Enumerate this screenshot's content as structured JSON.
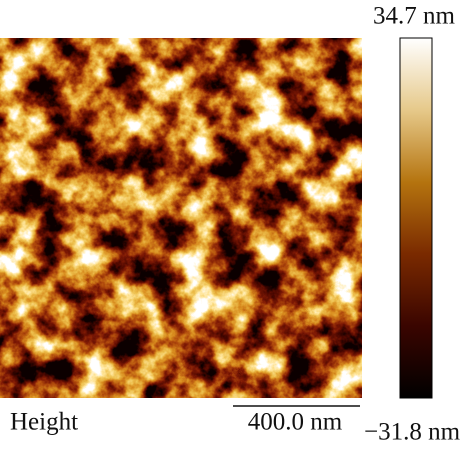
{
  "image_label": "Height",
  "scale_bar": "400.0 nm",
  "colorbar": {
    "max_label": "34.7 nm",
    "min_label": "−31.8 nm"
  }
}
